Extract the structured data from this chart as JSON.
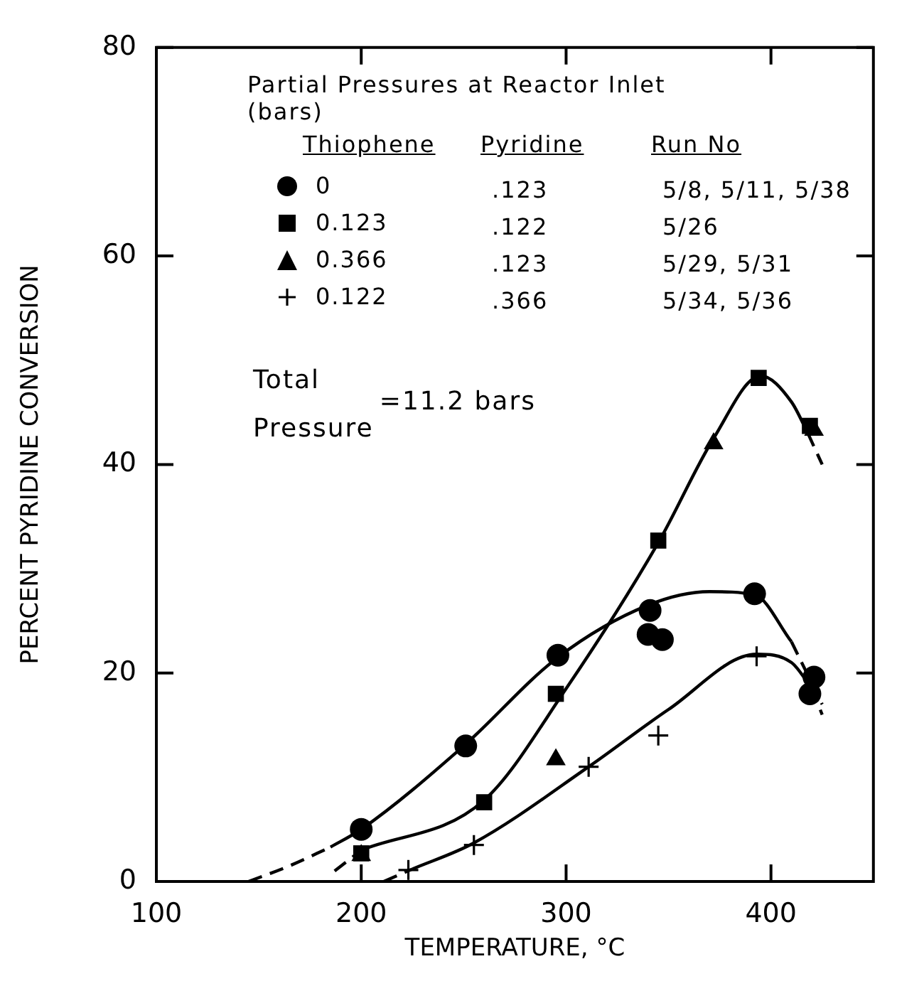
{
  "chart_data": {
    "type": "scatter",
    "xlabel": "TEMPERATURE, °C",
    "ylabel": "PERCENT PYRIDINE CONVERSION",
    "xlim": [
      100,
      450
    ],
    "xticks": [
      100,
      200,
      300,
      400
    ],
    "ylim": [
      0,
      80
    ],
    "yticks": [
      0,
      20,
      40,
      60,
      80
    ],
    "grid": false,
    "legend": "top left",
    "legend_title": "Partial Pressures at Reactor Inlet (bars)",
    "annotations": [
      "Thiophene",
      "Pyridine",
      "Run No",
      ".123",
      "5/8, 5/11, 5/38",
      ".122",
      "5/26",
      ".123",
      "5/29, 5/31",
      ".366",
      "5/34, 5/36",
      "Total",
      "Pressure",
      "=11.2 bars"
    ],
    "series": [
      {
        "type": "scatter",
        "name": "0",
        "marker": "circle",
        "color": "#000000",
        "x": [
          200,
          251,
          296,
          341,
          340,
          347,
          392,
          421,
          419
        ],
        "values": [
          5,
          13,
          21.7,
          26,
          23.7,
          23.2,
          27.6,
          19.6,
          18
        ]
      },
      {
        "type": "scatter",
        "name": "0.123",
        "marker": "square",
        "color": "#000000",
        "x": [
          200,
          260,
          295,
          345,
          394,
          419
        ],
        "values": [
          2.7,
          7.6,
          18,
          32.7,
          48.3,
          43.7
        ]
      },
      {
        "type": "scatter",
        "name": "0.366",
        "marker": "triangle",
        "color": "#000000",
        "x": [
          200,
          295,
          372,
          421
        ],
        "values": [
          2.5,
          11.7,
          42,
          43.3
        ]
      },
      {
        "type": "scatter",
        "name": "0.122",
        "marker": "cross",
        "color": "#000000",
        "x": [
          223,
          255,
          311,
          345,
          393
        ],
        "values": [
          1.1,
          3.5,
          11,
          14,
          21.6
        ]
      },
      {
        "type": "line",
        "line_style": "solid",
        "marker": "none",
        "color": "#000000",
        "x": [
          185,
          200,
          250,
          296,
          340,
          370,
          392,
          410
        ],
        "values": [
          3.3,
          5,
          13,
          21.5,
          26.5,
          27.8,
          27.5,
          23
        ]
      },
      {
        "type": "line",
        "line_style": "dashed",
        "marker": "none",
        "color": "#000000",
        "x": [
          145,
          165,
          185
        ],
        "values": [
          0,
          1.5,
          3.3
        ]
      },
      {
        "type": "line",
        "line_style": "dashed",
        "marker": "none",
        "color": "#000000",
        "x": [
          410,
          425
        ],
        "values": [
          23,
          17
        ]
      },
      {
        "type": "line",
        "line_style": "solid",
        "marker": "none",
        "color": "#000000",
        "x": [
          200,
          260,
          300,
          345,
          372,
          395,
          410,
          418
        ],
        "values": [
          3,
          7.8,
          18.5,
          32.5,
          42.5,
          48.5,
          46,
          43
        ]
      },
      {
        "type": "line",
        "line_style": "dashed",
        "marker": "none",
        "color": "#000000",
        "x": [
          187,
          200
        ],
        "values": [
          1,
          3
        ]
      },
      {
        "type": "line",
        "line_style": "dashed",
        "marker": "none",
        "color": "#000000",
        "x": [
          418,
          425
        ],
        "values": [
          43,
          40
        ]
      },
      {
        "type": "line",
        "line_style": "solid",
        "marker": "none",
        "color": "#000000",
        "x": [
          225,
          255,
          311,
          350,
          393,
          410,
          420
        ],
        "values": [
          1.2,
          3.7,
          11,
          16.5,
          21.8,
          21,
          18.5
        ]
      },
      {
        "type": "line",
        "line_style": "dashed",
        "marker": "none",
        "color": "#000000",
        "x": [
          211,
          225
        ],
        "values": [
          0,
          1.2
        ]
      },
      {
        "type": "line",
        "line_style": "dashed",
        "marker": "none",
        "color": "#000000",
        "x": [
          420,
          425
        ],
        "values": [
          18.5,
          16
        ]
      }
    ]
  }
}
